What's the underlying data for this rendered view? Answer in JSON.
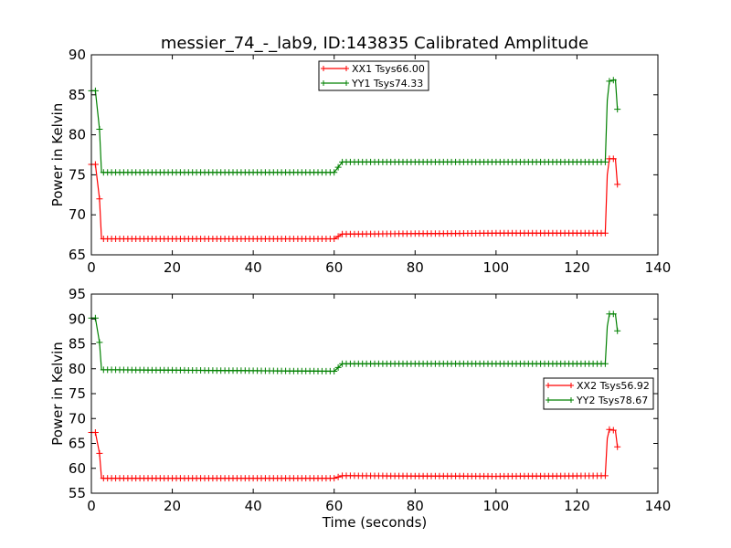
{
  "figure": {
    "title": "messier_74_-_lab9, ID:143835 Calibrated Amplitude",
    "xlabel": "Time (seconds)"
  },
  "chart_data": [
    {
      "type": "line",
      "title": "messier_74_-_lab9, ID:143835 Calibrated Amplitude",
      "xlabel": "",
      "ylabel": "Power in Kelvin",
      "xlim": [
        0,
        140
      ],
      "ylim": [
        65,
        90
      ],
      "xticks": [
        0,
        20,
        40,
        60,
        80,
        100,
        120,
        140
      ],
      "yticks": [
        65,
        70,
        75,
        80,
        85,
        90
      ],
      "grid": false,
      "legend": "upper-center",
      "marker": "+",
      "series": [
        {
          "name": "XX1 Tsys66.00",
          "color": "#ff0000",
          "points": [
            [
              0,
              76.3
            ],
            [
              1,
              76.3
            ],
            [
              2,
              72.0
            ],
            [
              2.5,
              67.0
            ],
            [
              60,
              67.0
            ],
            [
              62,
              67.6
            ],
            [
              64,
              67.6
            ],
            [
              100,
              67.7
            ],
            [
              127,
              67.7
            ],
            [
              127.5,
              75.0
            ],
            [
              128,
              77.0
            ],
            [
              129.5,
              77.0
            ],
            [
              130,
              73.8
            ]
          ]
        },
        {
          "name": "YY1 Tsys74.33",
          "color": "#008000",
          "points": [
            [
              0,
              85.5
            ],
            [
              1,
              85.5
            ],
            [
              2,
              80.7
            ],
            [
              2.5,
              75.3
            ],
            [
              60,
              75.3
            ],
            [
              62,
              76.6
            ],
            [
              64,
              76.6
            ],
            [
              100,
              76.6
            ],
            [
              127,
              76.6
            ],
            [
              127.5,
              84.3
            ],
            [
              128,
              86.7
            ],
            [
              129.5,
              86.9
            ],
            [
              130,
              83.2
            ]
          ]
        }
      ]
    },
    {
      "type": "line",
      "title": "",
      "xlabel": "Time (seconds)",
      "ylabel": "Power in Kelvin",
      "xlim": [
        0,
        140
      ],
      "ylim": [
        55,
        95
      ],
      "xticks": [
        0,
        20,
        40,
        60,
        80,
        100,
        120,
        140
      ],
      "yticks": [
        55,
        60,
        65,
        70,
        75,
        80,
        85,
        90,
        95
      ],
      "grid": false,
      "legend": "center-right",
      "marker": "+",
      "series": [
        {
          "name": "XX2 Tsys56.92",
          "color": "#ff0000",
          "points": [
            [
              0,
              67.2
            ],
            [
              1,
              67.2
            ],
            [
              2,
              63.0
            ],
            [
              2.5,
              58.0
            ],
            [
              60,
              58.0
            ],
            [
              62,
              58.5
            ],
            [
              64,
              58.5
            ],
            [
              100,
              58.4
            ],
            [
              127,
              58.5
            ],
            [
              127.5,
              66.0
            ],
            [
              128,
              67.8
            ],
            [
              129.5,
              67.6
            ],
            [
              130,
              64.3
            ]
          ]
        },
        {
          "name": "YY2 Tsys78.67",
          "color": "#008000",
          "points": [
            [
              0,
              90.2
            ],
            [
              1,
              90.2
            ],
            [
              2,
              85.3
            ],
            [
              2.5,
              79.8
            ],
            [
              60,
              79.5
            ],
            [
              62,
              81.0
            ],
            [
              64,
              81.0
            ],
            [
              100,
              81.0
            ],
            [
              127,
              81.0
            ],
            [
              127.5,
              88.5
            ],
            [
              128,
              91.0
            ],
            [
              129.5,
              91.0
            ],
            [
              130,
              87.6
            ]
          ]
        }
      ]
    }
  ]
}
